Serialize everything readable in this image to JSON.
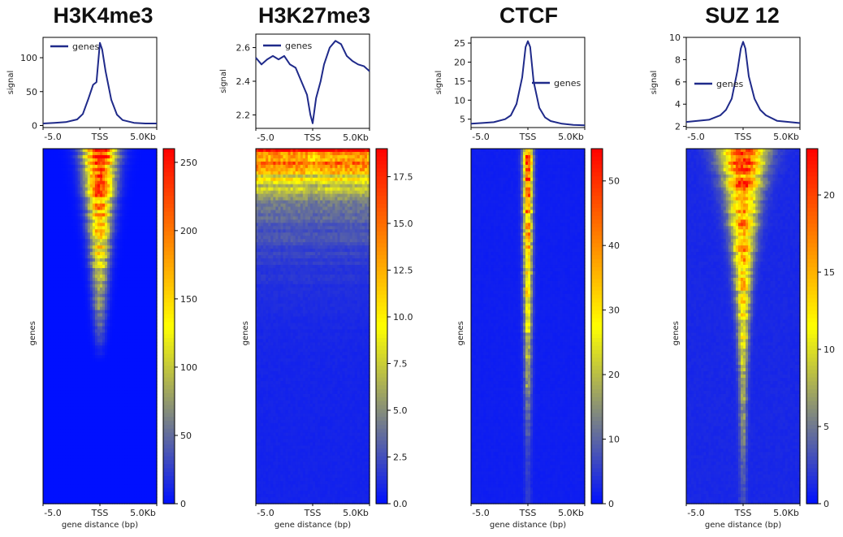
{
  "colors": {
    "line": "#1f2a8a",
    "axis": "#000000",
    "low": "#0010ff",
    "mid": "#ffff00",
    "high": "#ff0000"
  },
  "chart_data": [
    {
      "type": "heatmap",
      "title": "H3K4me3",
      "profile": {
        "ylabel": "signal",
        "ylim": [
          -3,
          130
        ],
        "yticks": [
          "0",
          "50",
          "100"
        ],
        "ytick_values": [
          0,
          50,
          100
        ],
        "legend": {
          "label": "genes",
          "position": "upper-left"
        },
        "x": [
          -5,
          -4,
          -3,
          -2,
          -1.5,
          -1,
          -0.6,
          -0.3,
          0,
          0.2,
          0.5,
          1,
          1.5,
          2,
          3,
          4,
          5
        ],
        "values": [
          3,
          4,
          5,
          9,
          17,
          40,
          60,
          64,
          122,
          112,
          80,
          38,
          16,
          8,
          4,
          3,
          3
        ]
      },
      "xticks": [
        "-5.0",
        "TSS",
        "5.0Kb"
      ],
      "xlabel": "gene distance (bp)",
      "ylabel": "genes",
      "colorbar": {
        "min": 0,
        "max": 260,
        "ticks": [
          "0",
          "50",
          "100",
          "150",
          "200",
          "250"
        ],
        "tick_values": [
          0,
          50,
          100,
          150,
          200,
          250
        ]
      },
      "pattern": "narrow TSS-centered signal tapering with gene rank; strongest at top"
    },
    {
      "type": "heatmap",
      "title": "H3K27me3",
      "profile": {
        "ylabel": "signal",
        "ylim": [
          2.12,
          2.68
        ],
        "yticks": [
          "2.2",
          "2.4",
          "2.6"
        ],
        "ytick_values": [
          2.2,
          2.4,
          2.6
        ],
        "legend": {
          "label": "genes",
          "position": "upper-left"
        },
        "x": [
          -5,
          -4.5,
          -4,
          -3.5,
          -3,
          -2.5,
          -2,
          -1.5,
          -1,
          -0.5,
          -0.2,
          0,
          0.3,
          0.7,
          1,
          1.5,
          2,
          2.5,
          3,
          3.5,
          4,
          4.5,
          5
        ],
        "values": [
          2.54,
          2.5,
          2.53,
          2.55,
          2.53,
          2.55,
          2.5,
          2.48,
          2.4,
          2.32,
          2.2,
          2.15,
          2.3,
          2.4,
          2.5,
          2.6,
          2.64,
          2.62,
          2.55,
          2.52,
          2.5,
          2.49,
          2.46
        ]
      },
      "xticks": [
        "-5.0",
        "TSS",
        "5.0Kb"
      ],
      "xlabel": "gene distance (bp)",
      "ylabel": "genes",
      "colorbar": {
        "min": 0,
        "max": 19,
        "ticks": [
          "0.0",
          "2.5",
          "5.0",
          "7.5",
          "10.0",
          "12.5",
          "15.0",
          "17.5"
        ],
        "tick_values": [
          0,
          2.5,
          5,
          7.5,
          10,
          12.5,
          15,
          17.5
        ]
      },
      "pattern": "broad signal across all positions in top rows, fading to blue for lower-ranked genes"
    },
    {
      "type": "heatmap",
      "title": "CTCF",
      "profile": {
        "ylabel": "signal",
        "ylim": [
          2.8,
          26.5
        ],
        "yticks": [
          "5",
          "10",
          "15",
          "20",
          "25"
        ],
        "ytick_values": [
          5,
          10,
          15,
          20,
          25
        ],
        "legend": {
          "label": "genes",
          "position": "center-right"
        },
        "x": [
          -5,
          -4,
          -3,
          -2,
          -1.5,
          -1,
          -0.5,
          -0.2,
          0,
          0.2,
          0.5,
          1,
          1.5,
          2,
          3,
          4,
          5
        ],
        "values": [
          3.8,
          4,
          4.2,
          5,
          6,
          9,
          16,
          24,
          25.5,
          24,
          15,
          8,
          5.5,
          4.5,
          3.8,
          3.5,
          3.4
        ]
      },
      "xticks": [
        "-5.0",
        "TSS",
        "5.0Kb"
      ],
      "xlabel": "gene distance (bp)",
      "ylabel": "genes",
      "colorbar": {
        "min": 0,
        "max": 55,
        "ticks": [
          "0",
          "10",
          "20",
          "30",
          "40",
          "50"
        ],
        "tick_values": [
          0,
          10,
          20,
          30,
          40,
          50
        ]
      },
      "pattern": "narrow TSS-centered band extending through most gene ranks"
    },
    {
      "type": "heatmap",
      "title": "SUZ 12",
      "profile": {
        "ylabel": "signal",
        "ylim": [
          1.9,
          10
        ],
        "yticks": [
          "2",
          "4",
          "6",
          "8",
          "10"
        ],
        "ytick_values": [
          2,
          4,
          6,
          8,
          10
        ],
        "legend": {
          "label": "genes",
          "position": "center-left"
        },
        "x": [
          -5,
          -4,
          -3,
          -2,
          -1.5,
          -1,
          -0.5,
          -0.2,
          0,
          0.2,
          0.5,
          1,
          1.5,
          2,
          3,
          4,
          5
        ],
        "values": [
          2.4,
          2.5,
          2.6,
          3,
          3.5,
          4.5,
          7,
          9,
          9.6,
          9,
          6.5,
          4.5,
          3.5,
          3,
          2.5,
          2.4,
          2.3
        ]
      },
      "xticks": [
        "-5.0",
        "TSS",
        "5.0Kb"
      ],
      "xlabel": "gene distance (bp)",
      "ylabel": "genes",
      "colorbar": {
        "min": 0,
        "max": 23,
        "ticks": [
          "0",
          "5",
          "10",
          "15",
          "20"
        ],
        "tick_values": [
          0,
          5,
          10,
          15,
          20
        ]
      },
      "pattern": "V-shaped TSS band, broad at top and narrowing with gene rank"
    }
  ]
}
